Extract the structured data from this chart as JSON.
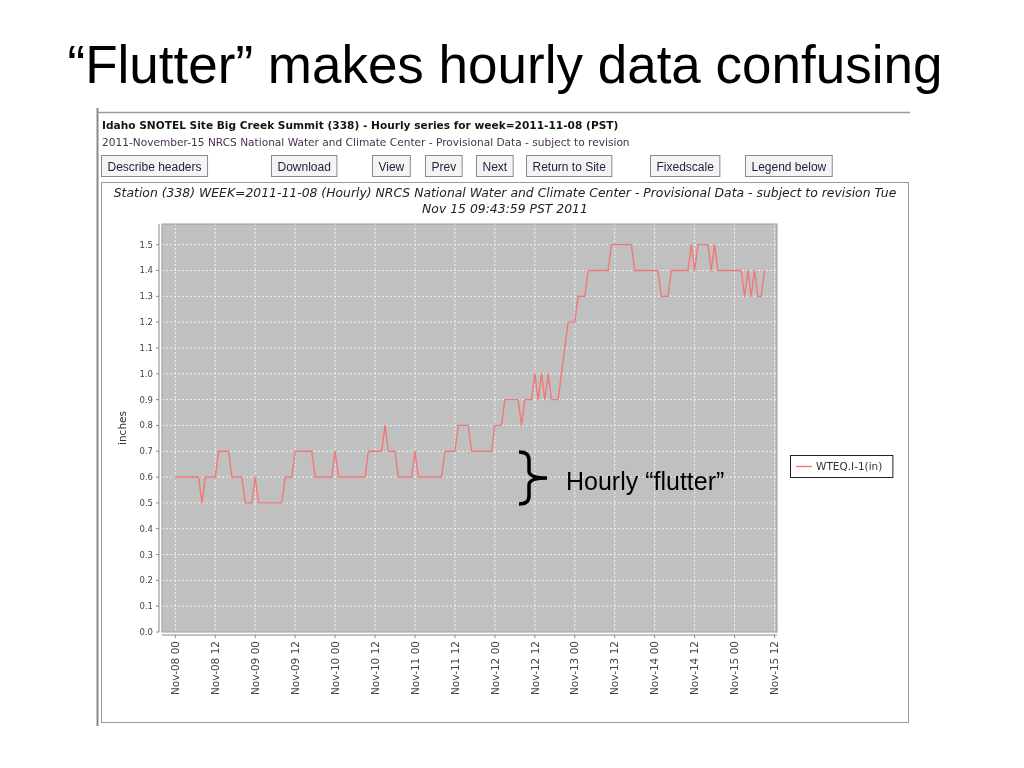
{
  "chart_data": {
    "type": "line",
    "title": "“Flutter” makes hourly data confusing",
    "subtitle": "Station (338) WEEK=2011-11-08 (Hourly) NRCS National Water and Climate Center - Provisional Data - subject to revision Tue Nov 15 09:43:59 PST 2011",
    "ylabel": "inches",
    "annotations": [
      "Idaho SNOTEL Site Big Creek Summit (338) - Hourly series for week=2011-11-08 (PST)",
      "2011-November-15 NRCS National Water and Climate Center - Provisional Data - subject to revision",
      "Describe headers",
      "Download",
      "View",
      "Prev",
      "Next",
      "Return to Site",
      "Fixedscale",
      "Legend below",
      "Hourly “flutter”"
    ],
    "x": [
      "2011-11-08T00:00",
      "2011-11-08T07:00",
      "2011-11-08T08:00",
      "2011-11-08T09:00",
      "2011-11-08T12:00",
      "2011-11-08T13:00",
      "2011-11-08T16:00",
      "2011-11-08T17:00",
      "2011-11-08T20:00",
      "2011-11-08T21:00",
      "2011-11-08T23:00",
      "2011-11-09T00:00",
      "2011-11-09T01:00",
      "2011-11-09T08:00",
      "2011-11-09T09:00",
      "2011-11-09T11:00",
      "2011-11-09T12:00",
      "2011-11-09T17:00",
      "2011-11-09T18:00",
      "2011-11-09T23:00",
      "2011-11-10T00:00",
      "2011-11-10T01:00",
      "2011-11-10T09:00",
      "2011-11-10T10:00",
      "2011-11-10T14:00",
      "2011-11-10T15:00",
      "2011-11-10T16:00",
      "2011-11-10T18:00",
      "2011-11-10T19:00",
      "2011-11-10T23:00",
      "2011-11-11T00:00",
      "2011-11-11T01:00",
      "2011-11-11T08:00",
      "2011-11-11T09:00",
      "2011-11-11T12:00",
      "2011-11-11T13:00",
      "2011-11-11T16:00",
      "2011-11-11T17:00",
      "2011-11-11T23:00",
      "2011-11-12T00:00",
      "2011-11-12T02:00",
      "2011-11-12T03:00",
      "2011-11-12T07:00",
      "2011-11-12T08:00",
      "2011-11-12T09:00",
      "2011-11-12T11:00",
      "2011-11-12T12:00",
      "2011-11-12T13:00",
      "2011-11-12T14:00",
      "2011-11-12T15:00",
      "2011-11-12T16:00",
      "2011-11-12T17:00",
      "2011-11-12T19:00",
      "2011-11-12T22:00",
      "2011-11-13T00:00",
      "2011-11-13T01:00",
      "2011-11-13T03:00",
      "2011-11-13T04:00",
      "2011-11-13T10:00",
      "2011-11-13T11:00",
      "2011-11-13T17:00",
      "2011-11-13T18:00",
      "2011-11-14T01:00",
      "2011-11-14T02:00",
      "2011-11-14T04:00",
      "2011-11-14T05:00",
      "2011-11-14T10:00",
      "2011-11-14T11:00",
      "2011-11-14T12:00",
      "2011-11-14T13:00",
      "2011-11-14T16:00",
      "2011-11-14T17:00",
      "2011-11-14T18:00",
      "2011-11-14T19:00",
      "2011-11-15T02:00",
      "2011-11-15T03:00",
      "2011-11-15T04:00",
      "2011-11-15T05:00",
      "2011-11-15T06:00",
      "2011-11-15T07:00",
      "2011-11-15T08:00",
      "2011-11-15T09:00"
    ],
    "series": [
      {
        "name": "WTEQ.I-1(in)",
        "color": "#f07878",
        "values": [
          0.6,
          0.6,
          0.5,
          0.6,
          0.6,
          0.7,
          0.7,
          0.6,
          0.6,
          0.5,
          0.5,
          0.6,
          0.5,
          0.5,
          0.6,
          0.6,
          0.7,
          0.7,
          0.6,
          0.6,
          0.7,
          0.6,
          0.6,
          0.7,
          0.7,
          0.8,
          0.7,
          0.7,
          0.6,
          0.6,
          0.7,
          0.6,
          0.6,
          0.7,
          0.7,
          0.8,
          0.8,
          0.7,
          0.7,
          0.8,
          0.8,
          0.9,
          0.9,
          0.8,
          0.9,
          0.9,
          1.0,
          0.9,
          1.0,
          0.9,
          1.0,
          0.9,
          0.9,
          1.2,
          1.2,
          1.3,
          1.3,
          1.4,
          1.4,
          1.5,
          1.5,
          1.4,
          1.4,
          1.3,
          1.3,
          1.4,
          1.4,
          1.5,
          1.4,
          1.5,
          1.5,
          1.4,
          1.5,
          1.4,
          1.4,
          1.3,
          1.4,
          1.3,
          1.4,
          1.3,
          1.3,
          1.4
        ]
      }
    ],
    "xlim": [
      "2011-11-07T20:00",
      "2011-11-15T12:45"
    ],
    "xticks": [
      {
        "value": "2011-11-08T00:00",
        "label": "Nov-08 00"
      },
      {
        "value": "2011-11-08T12:00",
        "label": "Nov-08 12"
      },
      {
        "value": "2011-11-09T00:00",
        "label": "Nov-09 00"
      },
      {
        "value": "2011-11-09T12:00",
        "label": "Nov-09 12"
      },
      {
        "value": "2011-11-10T00:00",
        "label": "Nov-10 00"
      },
      {
        "value": "2011-11-10T12:00",
        "label": "Nov-10 12"
      },
      {
        "value": "2011-11-11T00:00",
        "label": "Nov-11 00"
      },
      {
        "value": "2011-11-11T12:00",
        "label": "Nov-11 12"
      },
      {
        "value": "2011-11-12T00:00",
        "label": "Nov-12 00"
      },
      {
        "value": "2011-11-12T12:00",
        "label": "Nov-12 12"
      },
      {
        "value": "2011-11-13T00:00",
        "label": "Nov-13 00"
      },
      {
        "value": "2011-11-13T12:00",
        "label": "Nov-13 12"
      },
      {
        "value": "2011-11-14T00:00",
        "label": "Nov-14 00"
      },
      {
        "value": "2011-11-14T12:00",
        "label": "Nov-14 12"
      },
      {
        "value": "2011-11-15T00:00",
        "label": "Nov-15 00"
      },
      {
        "value": "2011-11-15T12:00",
        "label": "Nov-15 12"
      }
    ],
    "ylim": [
      0,
      1.58
    ],
    "yticks": [
      {
        "value": 0,
        "label": "0.0"
      },
      0.1,
      0.2,
      0.3,
      0.4,
      0.5,
      0.6,
      0.7,
      0.8,
      0.9,
      {
        "value": 1,
        "label": "1.0"
      },
      1.1,
      1.2,
      1.3,
      1.4,
      1.5
    ],
    "grid": true,
    "legend": "right"
  }
}
